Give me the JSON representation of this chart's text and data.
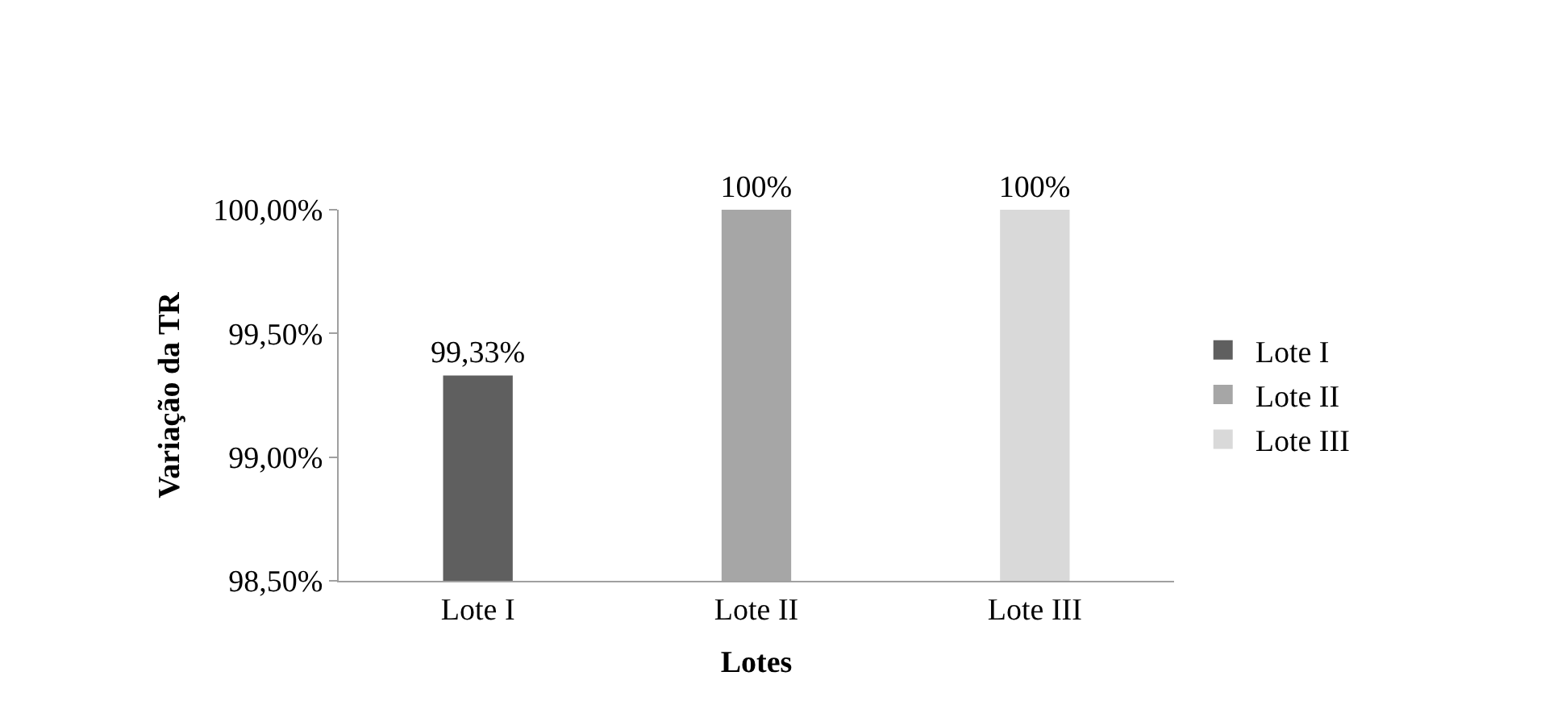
{
  "chart_data": {
    "type": "bar",
    "xlabel": "Lotes",
    "ylabel": "Variação da TR",
    "categories": [
      "Lote I",
      "Lote II",
      "Lote III"
    ],
    "series": [
      {
        "name": "Lote I",
        "color": "#5f5f5f",
        "values": [
          99.33,
          null,
          null
        ],
        "value_labels": [
          "99,33%",
          null,
          null
        ]
      },
      {
        "name": "Lote II",
        "color": "#a6a6a6",
        "values": [
          null,
          100,
          null
        ],
        "value_labels": [
          null,
          "100%",
          null
        ]
      },
      {
        "name": "Lote III",
        "color": "#d9d9d9",
        "values": [
          null,
          null,
          100
        ],
        "value_labels": [
          null,
          null,
          "100%"
        ]
      }
    ],
    "ylim": [
      98.5,
      100
    ],
    "yticks": [
      {
        "value": 98.5,
        "label": "98,50%"
      },
      {
        "value": 99,
        "label": "99,00%"
      },
      {
        "value": 99.5,
        "label": "99,50%"
      },
      {
        "value": 100,
        "label": "100,00%"
      }
    ],
    "legend": "right"
  }
}
